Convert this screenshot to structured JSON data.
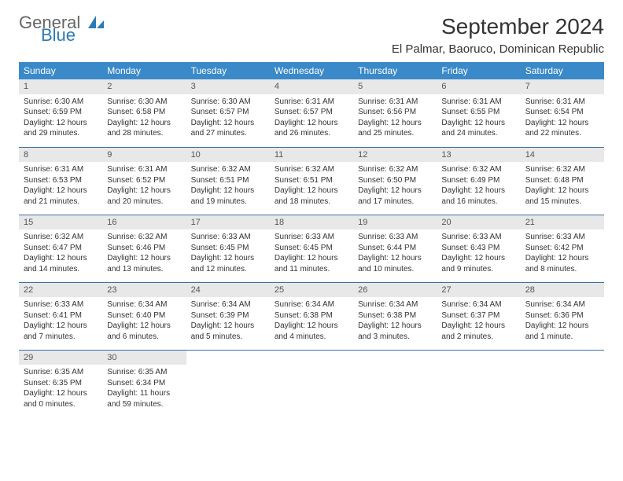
{
  "logo": {
    "text1": "General",
    "text2": "Blue",
    "icon_color": "#2a7ab8"
  },
  "title": "September 2024",
  "location": "El Palmar, Baoruco, Dominican Republic",
  "colors": {
    "header_bg": "#3a89c9",
    "header_text": "#ffffff",
    "daynum_bg": "#e8e8e8",
    "row_border": "#3a6ea5",
    "text": "#333333"
  },
  "weekdays": [
    "Sunday",
    "Monday",
    "Tuesday",
    "Wednesday",
    "Thursday",
    "Friday",
    "Saturday"
  ],
  "weeks": [
    [
      {
        "n": "1",
        "sr": "Sunrise: 6:30 AM",
        "ss": "Sunset: 6:59 PM",
        "d1": "Daylight: 12 hours",
        "d2": "and 29 minutes."
      },
      {
        "n": "2",
        "sr": "Sunrise: 6:30 AM",
        "ss": "Sunset: 6:58 PM",
        "d1": "Daylight: 12 hours",
        "d2": "and 28 minutes."
      },
      {
        "n": "3",
        "sr": "Sunrise: 6:30 AM",
        "ss": "Sunset: 6:57 PM",
        "d1": "Daylight: 12 hours",
        "d2": "and 27 minutes."
      },
      {
        "n": "4",
        "sr": "Sunrise: 6:31 AM",
        "ss": "Sunset: 6:57 PM",
        "d1": "Daylight: 12 hours",
        "d2": "and 26 minutes."
      },
      {
        "n": "5",
        "sr": "Sunrise: 6:31 AM",
        "ss": "Sunset: 6:56 PM",
        "d1": "Daylight: 12 hours",
        "d2": "and 25 minutes."
      },
      {
        "n": "6",
        "sr": "Sunrise: 6:31 AM",
        "ss": "Sunset: 6:55 PM",
        "d1": "Daylight: 12 hours",
        "d2": "and 24 minutes."
      },
      {
        "n": "7",
        "sr": "Sunrise: 6:31 AM",
        "ss": "Sunset: 6:54 PM",
        "d1": "Daylight: 12 hours",
        "d2": "and 22 minutes."
      }
    ],
    [
      {
        "n": "8",
        "sr": "Sunrise: 6:31 AM",
        "ss": "Sunset: 6:53 PM",
        "d1": "Daylight: 12 hours",
        "d2": "and 21 minutes."
      },
      {
        "n": "9",
        "sr": "Sunrise: 6:31 AM",
        "ss": "Sunset: 6:52 PM",
        "d1": "Daylight: 12 hours",
        "d2": "and 20 minutes."
      },
      {
        "n": "10",
        "sr": "Sunrise: 6:32 AM",
        "ss": "Sunset: 6:51 PM",
        "d1": "Daylight: 12 hours",
        "d2": "and 19 minutes."
      },
      {
        "n": "11",
        "sr": "Sunrise: 6:32 AM",
        "ss": "Sunset: 6:51 PM",
        "d1": "Daylight: 12 hours",
        "d2": "and 18 minutes."
      },
      {
        "n": "12",
        "sr": "Sunrise: 6:32 AM",
        "ss": "Sunset: 6:50 PM",
        "d1": "Daylight: 12 hours",
        "d2": "and 17 minutes."
      },
      {
        "n": "13",
        "sr": "Sunrise: 6:32 AM",
        "ss": "Sunset: 6:49 PM",
        "d1": "Daylight: 12 hours",
        "d2": "and 16 minutes."
      },
      {
        "n": "14",
        "sr": "Sunrise: 6:32 AM",
        "ss": "Sunset: 6:48 PM",
        "d1": "Daylight: 12 hours",
        "d2": "and 15 minutes."
      }
    ],
    [
      {
        "n": "15",
        "sr": "Sunrise: 6:32 AM",
        "ss": "Sunset: 6:47 PM",
        "d1": "Daylight: 12 hours",
        "d2": "and 14 minutes."
      },
      {
        "n": "16",
        "sr": "Sunrise: 6:32 AM",
        "ss": "Sunset: 6:46 PM",
        "d1": "Daylight: 12 hours",
        "d2": "and 13 minutes."
      },
      {
        "n": "17",
        "sr": "Sunrise: 6:33 AM",
        "ss": "Sunset: 6:45 PM",
        "d1": "Daylight: 12 hours",
        "d2": "and 12 minutes."
      },
      {
        "n": "18",
        "sr": "Sunrise: 6:33 AM",
        "ss": "Sunset: 6:45 PM",
        "d1": "Daylight: 12 hours",
        "d2": "and 11 minutes."
      },
      {
        "n": "19",
        "sr": "Sunrise: 6:33 AM",
        "ss": "Sunset: 6:44 PM",
        "d1": "Daylight: 12 hours",
        "d2": "and 10 minutes."
      },
      {
        "n": "20",
        "sr": "Sunrise: 6:33 AM",
        "ss": "Sunset: 6:43 PM",
        "d1": "Daylight: 12 hours",
        "d2": "and 9 minutes."
      },
      {
        "n": "21",
        "sr": "Sunrise: 6:33 AM",
        "ss": "Sunset: 6:42 PM",
        "d1": "Daylight: 12 hours",
        "d2": "and 8 minutes."
      }
    ],
    [
      {
        "n": "22",
        "sr": "Sunrise: 6:33 AM",
        "ss": "Sunset: 6:41 PM",
        "d1": "Daylight: 12 hours",
        "d2": "and 7 minutes."
      },
      {
        "n": "23",
        "sr": "Sunrise: 6:34 AM",
        "ss": "Sunset: 6:40 PM",
        "d1": "Daylight: 12 hours",
        "d2": "and 6 minutes."
      },
      {
        "n": "24",
        "sr": "Sunrise: 6:34 AM",
        "ss": "Sunset: 6:39 PM",
        "d1": "Daylight: 12 hours",
        "d2": "and 5 minutes."
      },
      {
        "n": "25",
        "sr": "Sunrise: 6:34 AM",
        "ss": "Sunset: 6:38 PM",
        "d1": "Daylight: 12 hours",
        "d2": "and 4 minutes."
      },
      {
        "n": "26",
        "sr": "Sunrise: 6:34 AM",
        "ss": "Sunset: 6:38 PM",
        "d1": "Daylight: 12 hours",
        "d2": "and 3 minutes."
      },
      {
        "n": "27",
        "sr": "Sunrise: 6:34 AM",
        "ss": "Sunset: 6:37 PM",
        "d1": "Daylight: 12 hours",
        "d2": "and 2 minutes."
      },
      {
        "n": "28",
        "sr": "Sunrise: 6:34 AM",
        "ss": "Sunset: 6:36 PM",
        "d1": "Daylight: 12 hours",
        "d2": "and 1 minute."
      }
    ],
    [
      {
        "n": "29",
        "sr": "Sunrise: 6:35 AM",
        "ss": "Sunset: 6:35 PM",
        "d1": "Daylight: 12 hours",
        "d2": "and 0 minutes."
      },
      {
        "n": "30",
        "sr": "Sunrise: 6:35 AM",
        "ss": "Sunset: 6:34 PM",
        "d1": "Daylight: 11 hours",
        "d2": "and 59 minutes."
      },
      {
        "empty": true
      },
      {
        "empty": true
      },
      {
        "empty": true
      },
      {
        "empty": true
      },
      {
        "empty": true
      }
    ]
  ]
}
